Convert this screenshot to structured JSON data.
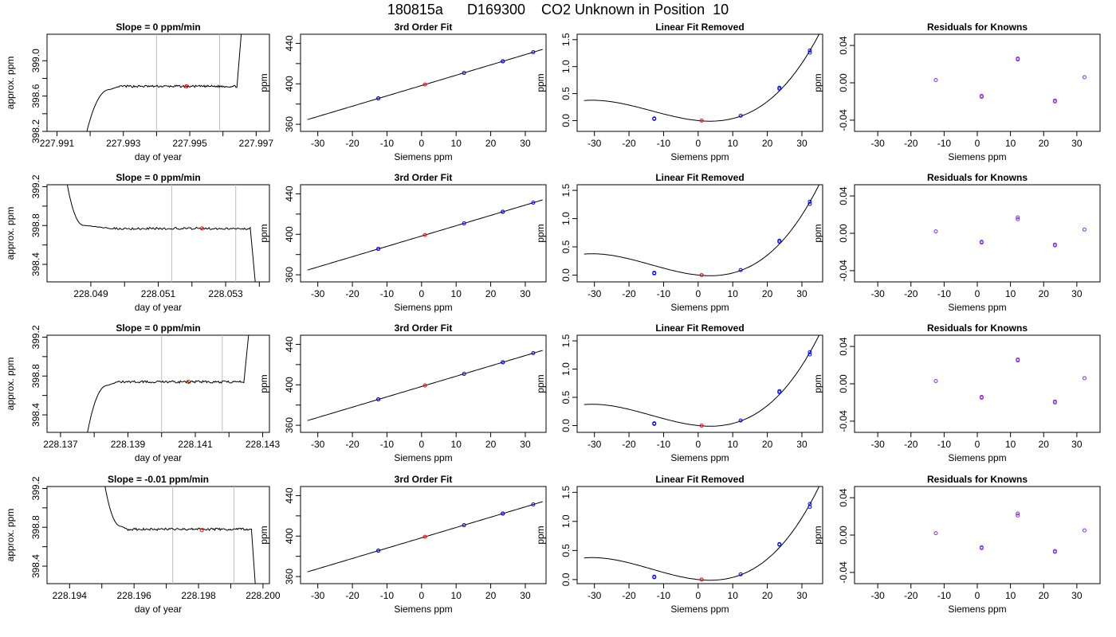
{
  "page": {
    "title": "180815a      D169300    CO2 Unknown in Position  10"
  },
  "colors": {
    "curve": "#000000",
    "cursor_lines": "#bebebe",
    "known_points": "#0000ff",
    "unknown_point": "#ff0000",
    "residual_points": "#8a2be2"
  },
  "chart_data": [
    {
      "id": "r1-slope",
      "type": "line",
      "title": "Slope =  0  ppm/min",
      "xlabel": "day of year",
      "ylabel": "approx. ppm",
      "xlim": [
        227.9907,
        227.9974
      ],
      "ylim": [
        398.2,
        399.3
      ],
      "xticks": [
        227.991,
        227.992,
        227.993,
        227.994,
        227.995,
        227.996,
        227.997
      ],
      "xticklabels": [
        "227.991",
        "",
        "227.993",
        "",
        "227.995",
        "",
        "227.997"
      ],
      "yticks": [
        398.2,
        398.4,
        398.6,
        398.8,
        399.0
      ],
      "yticklabels": [
        "398.2",
        "",
        "398.6",
        "",
        "399.0"
      ],
      "vlines": [
        227.994,
        227.9959
      ],
      "marker": [
        227.9949,
        398.71
      ],
      "trace": {
        "x0": 227.9919,
        "rise_end": 227.9926,
        "settle": 227.9929,
        "x_rise2": 227.99642,
        "x_end": 227.99655,
        "start": 398.2,
        "plateau": 398.71,
        "end": 399.3,
        "noise": 0.012
      }
    },
    {
      "id": "r1-fit",
      "type": "scatter",
      "title": "3rd Order Fit",
      "xlabel": "Siemens ppm",
      "ylabel": "ppm",
      "xlim": [
        -35,
        36
      ],
      "ylim": [
        353,
        449
      ],
      "xticks": [
        -30,
        -20,
        -10,
        0,
        10,
        20,
        30
      ],
      "yticks": [
        360,
        380,
        400,
        420,
        440
      ],
      "yticklabels": [
        "360",
        "",
        "400",
        "",
        "440"
      ],
      "curve": {
        "x0": -33,
        "x1": 35,
        "a": 398.3,
        "b": 1.02,
        "c": 0,
        "d": 0
      },
      "knowns": [
        [
          -12.5,
          385.7
        ],
        [
          23.5,
          422.3
        ],
        [
          32.3,
          431.3
        ],
        [
          12.3,
          410.8
        ],
        [
          -12.5,
          385.6
        ],
        [
          23.5,
          422.2
        ]
      ],
      "unknown": [
        1,
        399.3
      ]
    },
    {
      "id": "r1-lin",
      "type": "scatter",
      "title": "Linear Fit Removed",
      "xlabel": "Siemens ppm",
      "ylabel": "ppm",
      "xlim": [
        -35,
        36
      ],
      "ylim": [
        -0.2,
        1.6
      ],
      "xticks": [
        -30,
        -20,
        -10,
        0,
        10,
        20,
        30
      ],
      "yticks": [
        0,
        0.5,
        1.0,
        1.5
      ],
      "yticklabels": [
        "0.0",
        "0.5",
        "1.0",
        "1.5"
      ],
      "curve": {
        "x0": -33,
        "x1": 35,
        "a": 0.0003,
        "b": -0.0062,
        "c": 0.0008,
        "d": 1.96e-05
      },
      "knowns": [
        [
          -12.7,
          0.03
        ],
        [
          -12.7,
          0.04
        ],
        [
          12.3,
          0.09
        ],
        [
          23.5,
          0.59
        ],
        [
          23.5,
          0.61
        ],
        [
          32.3,
          1.26
        ],
        [
          32.3,
          1.3
        ]
      ],
      "unknown": [
        1,
        0.0
      ]
    },
    {
      "id": "r1-res",
      "type": "scatter",
      "title": "Residuals for Knowns",
      "xlabel": "Siemens ppm",
      "ylabel": "ppm",
      "xlim": [
        -37,
        37
      ],
      "ylim": [
        -0.052,
        0.052
      ],
      "xticks": [
        -30,
        -20,
        -10,
        0,
        10,
        20,
        30
      ],
      "yticks": [
        -0.04,
        0,
        0.04
      ],
      "yticklabels": [
        "-0.04",
        "0.00",
        "0.04"
      ],
      "points": [
        [
          -12.5,
          0.003
        ],
        [
          1.3,
          -0.014
        ],
        [
          1.3,
          -0.015
        ],
        [
          12.2,
          0.025
        ],
        [
          12.2,
          0.026
        ],
        [
          23.4,
          -0.019
        ],
        [
          23.4,
          -0.02
        ],
        [
          32.3,
          0.006
        ]
      ]
    },
    {
      "id": "r2-slope",
      "type": "line",
      "title": "Slope =  0  ppm/min",
      "xlabel": "day of year",
      "ylabel": "approx. ppm",
      "xlim": [
        228.0477,
        228.0543
      ],
      "ylim": [
        398.22,
        399.22
      ],
      "xticks": [
        228.049,
        228.05,
        228.051,
        228.052,
        228.053,
        228.054
      ],
      "xticklabels": [
        "228.049",
        "",
        "228.051",
        "",
        "228.053",
        ""
      ],
      "yticks": [
        398.4,
        398.6,
        398.8,
        399.0,
        399.2
      ],
      "yticklabels": [
        "398.4",
        "",
        "398.8",
        "",
        "399.2"
      ],
      "vlines": [
        228.0514,
        228.0533
      ],
      "marker": [
        228.0523,
        398.77
      ],
      "trace": {
        "x0": 228.0483,
        "rise_end": 228.0488,
        "settle": 228.0496,
        "x_rise2": 228.05373,
        "x_end": 228.05388,
        "start": 399.22,
        "plateau": 398.77,
        "end": 398.22,
        "noise": 0.012
      }
    },
    {
      "id": "r2-fit",
      "type": "scatter",
      "title": "3rd Order Fit",
      "xlabel": "Siemens ppm",
      "ylabel": "ppm",
      "xlim": [
        -35,
        36
      ],
      "ylim": [
        353,
        449
      ],
      "xticks": [
        -30,
        -20,
        -10,
        0,
        10,
        20,
        30
      ],
      "yticks": [
        360,
        380,
        400,
        420,
        440
      ],
      "yticklabels": [
        "360",
        "",
        "400",
        "",
        "440"
      ],
      "curve": {
        "x0": -33,
        "x1": 35,
        "a": 398.3,
        "b": 1.02,
        "c": 0,
        "d": 0
      },
      "knowns": [
        [
          -12.5,
          385.7
        ],
        [
          23.5,
          422.3
        ],
        [
          32.3,
          431.3
        ],
        [
          12.3,
          410.8
        ],
        [
          -12.5,
          385.6
        ],
        [
          23.5,
          422.2
        ]
      ],
      "unknown": [
        1,
        399.3
      ]
    },
    {
      "id": "r2-lin",
      "type": "scatter",
      "title": "Linear Fit Removed",
      "xlabel": "Siemens ppm",
      "ylabel": "ppm",
      "xlim": [
        -35,
        36
      ],
      "ylim": [
        -0.12,
        1.6
      ],
      "xticks": [
        -30,
        -20,
        -10,
        0,
        10,
        20,
        30
      ],
      "yticks": [
        0,
        0.5,
        1.0,
        1.5
      ],
      "yticklabels": [
        "0.0",
        "0.5",
        "1.0",
        "1.5"
      ],
      "curve": {
        "x0": -33,
        "x1": 35,
        "a": 0.0003,
        "b": -0.0062,
        "c": 0.0008,
        "d": 1.96e-05
      },
      "knowns": [
        [
          -12.7,
          0.03
        ],
        [
          -12.7,
          0.04
        ],
        [
          12.3,
          0.09
        ],
        [
          23.5,
          0.59
        ],
        [
          23.5,
          0.61
        ],
        [
          32.3,
          1.26
        ],
        [
          32.3,
          1.3
        ]
      ],
      "unknown": [
        1,
        0.0
      ]
    },
    {
      "id": "r2-res",
      "type": "scatter",
      "title": "Residuals for Knowns",
      "xlabel": "Siemens ppm",
      "ylabel": "ppm",
      "xlim": [
        -37,
        37
      ],
      "ylim": [
        -0.052,
        0.052
      ],
      "xticks": [
        -30,
        -20,
        -10,
        0,
        10,
        20,
        30
      ],
      "yticks": [
        -0.04,
        0,
        0.04
      ],
      "yticklabels": [
        "-0.04",
        "0.00",
        "0.04"
      ],
      "points": [
        [
          -12.5,
          0.002
        ],
        [
          1.3,
          -0.009
        ],
        [
          1.3,
          -0.01
        ],
        [
          12.2,
          0.015
        ],
        [
          12.2,
          0.017
        ],
        [
          23.4,
          -0.012
        ],
        [
          23.4,
          -0.013
        ],
        [
          32.3,
          0.004
        ]
      ]
    },
    {
      "id": "r3-slope",
      "type": "line",
      "title": "Slope =  0  ppm/min",
      "xlabel": "day of year",
      "ylabel": "approx. ppm",
      "xlim": [
        228.1366,
        228.1432
      ],
      "ylim": [
        398.22,
        399.22
      ],
      "xticks": [
        228.137,
        228.138,
        228.139,
        228.14,
        228.141,
        228.142,
        228.143
      ],
      "xticklabels": [
        "228.137",
        "",
        "228.139",
        "",
        "228.141",
        "",
        "228.143"
      ],
      "yticks": [
        398.4,
        398.6,
        398.8,
        399.0,
        399.2
      ],
      "yticklabels": [
        "398.4",
        "",
        "398.8",
        "",
        "399.2"
      ],
      "vlines": [
        228.14,
        228.1418
      ],
      "marker": [
        228.1408,
        398.74
      ],
      "trace": {
        "x0": 228.1378,
        "rise_end": 228.1384,
        "settle": 228.1387,
        "x_rise2": 228.14244,
        "x_end": 228.14258,
        "start": 398.22,
        "plateau": 398.74,
        "end": 399.22,
        "noise": 0.012
      }
    },
    {
      "id": "r3-fit",
      "type": "scatter",
      "title": "3rd Order Fit",
      "xlabel": "Siemens ppm",
      "ylabel": "ppm",
      "xlim": [
        -35,
        36
      ],
      "ylim": [
        353,
        449
      ],
      "xticks": [
        -30,
        -20,
        -10,
        0,
        10,
        20,
        30
      ],
      "yticks": [
        360,
        380,
        400,
        420,
        440
      ],
      "yticklabels": [
        "360",
        "",
        "400",
        "",
        "440"
      ],
      "curve": {
        "x0": -33,
        "x1": 35,
        "a": 398.3,
        "b": 1.02,
        "c": 0,
        "d": 0
      },
      "knowns": [
        [
          -12.5,
          385.7
        ],
        [
          23.5,
          422.3
        ],
        [
          32.3,
          431.3
        ],
        [
          12.3,
          410.8
        ],
        [
          -12.5,
          385.6
        ],
        [
          23.5,
          422.2
        ]
      ],
      "unknown": [
        1,
        399.3
      ]
    },
    {
      "id": "r3-lin",
      "type": "scatter",
      "title": "Linear Fit Removed",
      "xlabel": "Siemens ppm",
      "ylabel": "ppm",
      "xlim": [
        -35,
        36
      ],
      "ylim": [
        -0.12,
        1.6
      ],
      "xticks": [
        -30,
        -20,
        -10,
        0,
        10,
        20,
        30
      ],
      "yticks": [
        0,
        0.5,
        1.0,
        1.5
      ],
      "yticklabels": [
        "0.0",
        "0.5",
        "1.0",
        "1.5"
      ],
      "curve": {
        "x0": -33,
        "x1": 35,
        "a": 0.0003,
        "b": -0.0062,
        "c": 0.0008,
        "d": 1.96e-05
      },
      "knowns": [
        [
          -12.7,
          0.03
        ],
        [
          -12.7,
          0.04
        ],
        [
          12.3,
          0.09
        ],
        [
          23.5,
          0.59
        ],
        [
          23.5,
          0.61
        ],
        [
          32.3,
          1.26
        ],
        [
          32.3,
          1.3
        ]
      ],
      "unknown": [
        1,
        0.0
      ]
    },
    {
      "id": "r3-res",
      "type": "scatter",
      "title": "Residuals for Knowns",
      "xlabel": "Siemens ppm",
      "ylabel": "ppm",
      "xlim": [
        -37,
        37
      ],
      "ylim": [
        -0.052,
        0.052
      ],
      "xticks": [
        -30,
        -20,
        -10,
        0,
        10,
        20,
        30
      ],
      "yticks": [
        -0.04,
        0,
        0.04
      ],
      "yticklabels": [
        "-0.04",
        "0.00",
        "0.04"
      ],
      "points": [
        [
          -12.5,
          0.003
        ],
        [
          1.3,
          -0.014
        ],
        [
          1.3,
          -0.015
        ],
        [
          12.2,
          0.025
        ],
        [
          12.2,
          0.026
        ],
        [
          23.4,
          -0.019
        ],
        [
          23.4,
          -0.02
        ],
        [
          32.3,
          0.006
        ]
      ]
    },
    {
      "id": "r4-slope",
      "type": "line",
      "title": "Slope =  -0.01  ppm/min",
      "xlabel": "day of year",
      "ylabel": "approx. ppm",
      "xlim": [
        228.1933,
        228.2002
      ],
      "ylim": [
        398.22,
        399.22
      ],
      "xticks": [
        228.194,
        228.195,
        228.196,
        228.197,
        228.198,
        228.199,
        228.2
      ],
      "xticklabels": [
        "228.194",
        "",
        "228.196",
        "",
        "228.198",
        "",
        "228.200"
      ],
      "yticks": [
        398.4,
        398.6,
        398.8,
        399.0,
        399.2
      ],
      "yticklabels": [
        "398.4",
        "",
        "398.8",
        "",
        "399.2"
      ],
      "vlines": [
        228.1972,
        228.1991
      ],
      "marker": [
        228.1981,
        398.77
      ],
      "trace": {
        "x0": 228.1951,
        "rise_end": 228.1956,
        "settle": 228.1958,
        "x_rise2": 228.19964,
        "x_end": 228.19976,
        "start": 399.22,
        "plateau": 398.78,
        "end": 398.22,
        "noise": 0.012
      }
    },
    {
      "id": "r4-fit",
      "type": "scatter",
      "title": "3rd Order Fit",
      "xlabel": "Siemens ppm",
      "ylabel": "ppm",
      "xlim": [
        -35,
        36
      ],
      "ylim": [
        353,
        449
      ],
      "xticks": [
        -30,
        -20,
        -10,
        0,
        10,
        20,
        30
      ],
      "yticks": [
        360,
        380,
        400,
        420,
        440
      ],
      "yticklabels": [
        "360",
        "",
        "400",
        "",
        "440"
      ],
      "curve": {
        "x0": -33,
        "x1": 35,
        "a": 398.3,
        "b": 1.02,
        "c": 0,
        "d": 0
      },
      "knowns": [
        [
          -12.5,
          385.7
        ],
        [
          23.5,
          422.3
        ],
        [
          32.3,
          431.3
        ],
        [
          12.3,
          410.8
        ],
        [
          -12.5,
          385.6
        ],
        [
          23.5,
          422.2
        ]
      ],
      "unknown": [
        1,
        399.3
      ]
    },
    {
      "id": "r4-lin",
      "type": "scatter",
      "title": "Linear Fit Removed",
      "xlabel": "Siemens ppm",
      "ylabel": "ppm",
      "xlim": [
        -35,
        36
      ],
      "ylim": [
        -0.07,
        1.6
      ],
      "xticks": [
        -30,
        -20,
        -10,
        0,
        10,
        20,
        30
      ],
      "yticks": [
        0,
        0.5,
        1.0,
        1.5
      ],
      "yticklabels": [
        "0.0",
        "0.5",
        "1.0",
        "1.5"
      ],
      "curve": {
        "x0": -33,
        "x1": 35,
        "a": 0.0003,
        "b": -0.0062,
        "c": 0.0008,
        "d": 1.96e-05
      },
      "knowns": [
        [
          -12.7,
          0.04
        ],
        [
          -12.7,
          0.05
        ],
        [
          12.3,
          0.09
        ],
        [
          23.5,
          0.6
        ],
        [
          23.5,
          0.61
        ],
        [
          32.3,
          1.25
        ],
        [
          32.3,
          1.3
        ]
      ],
      "unknown": [
        1,
        0.0
      ]
    },
    {
      "id": "r4-res",
      "type": "scatter",
      "title": "Residuals for Knowns",
      "xlabel": "Siemens ppm",
      "ylabel": "ppm",
      "xlim": [
        -37,
        37
      ],
      "ylim": [
        -0.052,
        0.052
      ],
      "xticks": [
        -30,
        -20,
        -10,
        0,
        10,
        20,
        30
      ],
      "yticks": [
        -0.04,
        0,
        0.04
      ],
      "yticklabels": [
        "-0.04",
        "0.00",
        "0.04"
      ],
      "points": [
        [
          -12.5,
          0.002
        ],
        [
          1.3,
          -0.013
        ],
        [
          1.3,
          -0.014
        ],
        [
          12.2,
          0.021
        ],
        [
          12.2,
          0.023
        ],
        [
          23.4,
          -0.017
        ],
        [
          23.4,
          -0.018
        ],
        [
          32.3,
          0.005
        ]
      ]
    }
  ]
}
